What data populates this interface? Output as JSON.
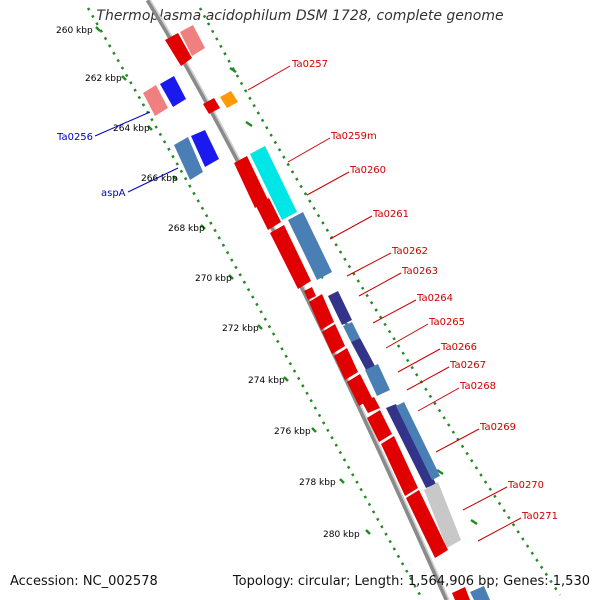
{
  "title": "Thermoplasma acidophilum DSM 1728, complete genome",
  "footer": {
    "accession": "Accession: NC_002578",
    "summary": "Topology: circular; Length: 1,564,906 bp; Genes: 1,530"
  },
  "colors": {
    "gene_label": "#cc0000",
    "left_label": "#0000cc",
    "scale_dots": "#228b22",
    "backbone": "#888888"
  },
  "scale_labels": [
    "260 kbp",
    "262 kbp",
    "264 kbp",
    "266 kbp",
    "268 kbp",
    "270 kbp",
    "272 kbp",
    "274 kbp",
    "276 kbp",
    "278 kbp",
    "280 kbp"
  ],
  "right_labels": [
    "Ta0257",
    "Ta0259m",
    "Ta0260",
    "Ta0261",
    "Ta0262",
    "Ta0263",
    "Ta0264",
    "Ta0265",
    "Ta0266",
    "Ta0267",
    "Ta0268",
    "Ta0269",
    "Ta0270",
    "Ta0271"
  ],
  "left_labels": [
    "Ta0256",
    "aspA"
  ]
}
